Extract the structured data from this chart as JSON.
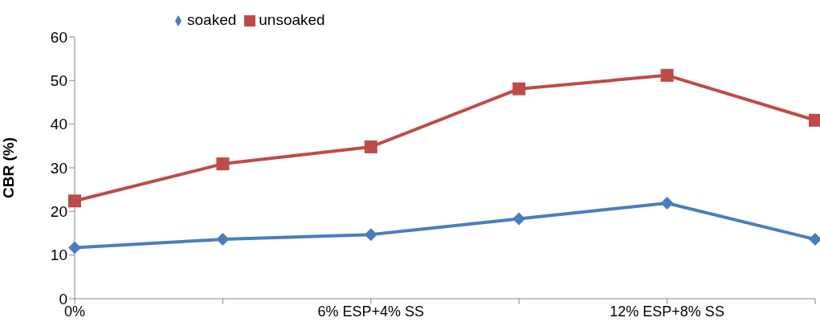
{
  "chart_data": {
    "type": "line",
    "ylabel": "CBR (%)",
    "categories": [
      "0%",
      null,
      "6% ESP+4%  SS",
      null,
      "12% ESP+8%  SS",
      null
    ],
    "series": [
      {
        "name": "soaked",
        "color": "#4a7ebb",
        "marker": "diamond",
        "values": [
          11.7,
          13.6,
          14.7,
          18.3,
          21.9,
          13.6
        ]
      },
      {
        "name": "unsoaked",
        "color": "#be4b48",
        "marker": "square",
        "values": [
          22.4,
          30.9,
          34.8,
          48.1,
          51.2,
          40.9
        ]
      }
    ],
    "ylim": [
      0,
      60
    ],
    "yticks": [
      0,
      10,
      20,
      30,
      40,
      50,
      60
    ],
    "grid": false,
    "legend": "top left"
  }
}
